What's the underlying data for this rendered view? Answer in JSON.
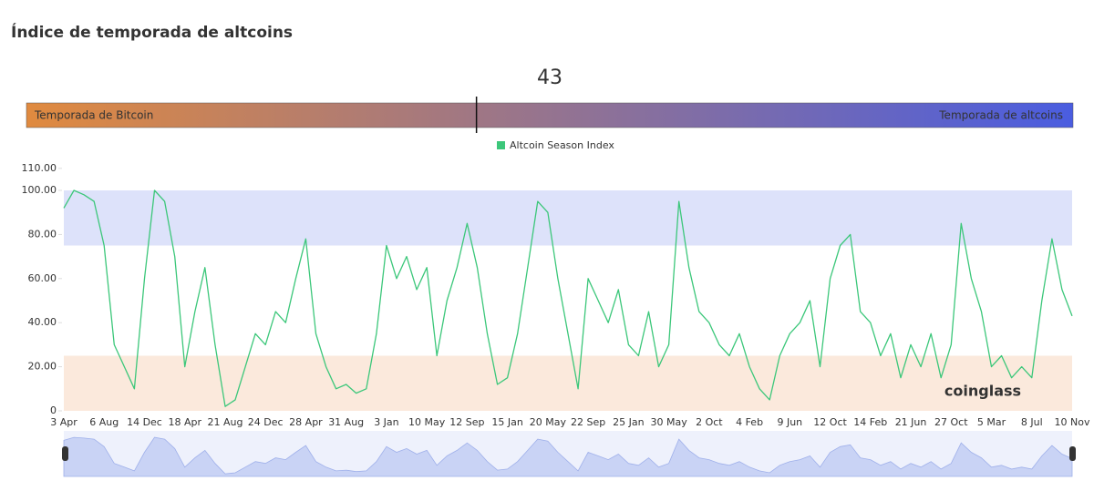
{
  "page_title": "Índice de temporada de altcoins",
  "gauge": {
    "value": 43,
    "min": 0,
    "max": 100,
    "left_label": "Temporada de Bitcoin",
    "right_label": "Temporada de altcoins",
    "left_color": "#e08a3f",
    "right_color": "#4a5de0"
  },
  "watermark": "coinglass",
  "chart_data": {
    "type": "line",
    "categories": [
      "3 Apr",
      null,
      null,
      null,
      "6 Aug",
      null,
      null,
      null,
      "14 Dec",
      null,
      null,
      null,
      "18 Apr",
      null,
      null,
      null,
      "21 Aug",
      null,
      null,
      null,
      "24 Dec",
      null,
      null,
      null,
      "28 Apr",
      null,
      null,
      null,
      "31 Aug",
      null,
      null,
      null,
      "3 Jan",
      null,
      null,
      null,
      "10 May",
      null,
      null,
      null,
      "12 Sep",
      null,
      null,
      null,
      "15 Jan",
      null,
      null,
      null,
      "20 May",
      null,
      null,
      null,
      "22 Sep",
      null,
      null,
      null,
      "25 Jan",
      null,
      null,
      null,
      "30 May",
      null,
      null,
      null,
      "2 Oct",
      null,
      null,
      null,
      "4 Feb",
      null,
      null,
      null,
      "9 Jun",
      null,
      null,
      null,
      "12 Oct",
      null,
      null,
      null,
      "14 Feb",
      null,
      null,
      null,
      "21 Jun",
      null,
      null,
      null,
      "27 Oct",
      null,
      null,
      null,
      "5 Mar",
      null,
      null,
      null,
      "8 Jul",
      null,
      null,
      null,
      "10 Nov"
    ],
    "series": [
      {
        "name": "Altcoin Season Index",
        "color": "#3cc77a",
        "values": [
          92,
          100,
          98,
          95,
          75,
          30,
          20,
          10,
          60,
          100,
          95,
          70,
          20,
          45,
          65,
          30,
          2,
          5,
          20,
          35,
          30,
          45,
          40,
          60,
          78,
          35,
          20,
          10,
          12,
          8,
          10,
          35,
          75,
          60,
          70,
          55,
          65,
          25,
          50,
          65,
          85,
          65,
          35,
          12,
          15,
          35,
          65,
          95,
          90,
          60,
          35,
          10,
          60,
          50,
          40,
          55,
          30,
          25,
          45,
          20,
          30,
          95,
          65,
          45,
          40,
          30,
          25,
          35,
          20,
          10,
          5,
          25,
          35,
          40,
          50,
          20,
          60,
          75,
          80,
          45,
          40,
          25,
          35,
          15,
          30,
          20,
          35,
          15,
          30,
          85,
          60,
          45,
          20,
          25,
          15,
          20,
          15,
          50,
          78,
          55,
          43
        ]
      }
    ],
    "ylim": [
      0,
      110
    ],
    "yticks": [
      0,
      {
        "value": 20,
        "label": "20.00"
      },
      {
        "value": 40,
        "label": "40.00"
      },
      {
        "value": 60,
        "label": "60.00"
      },
      {
        "value": 80,
        "label": "80.00"
      },
      {
        "value": 100,
        "label": "100.00"
      },
      {
        "value": 110,
        "label": "110.00"
      }
    ],
    "bands": [
      {
        "from": 75,
        "to": 100,
        "color": "#dde2fa"
      },
      {
        "from": 0,
        "to": 25,
        "color": "#fbe9dc"
      }
    ]
  }
}
